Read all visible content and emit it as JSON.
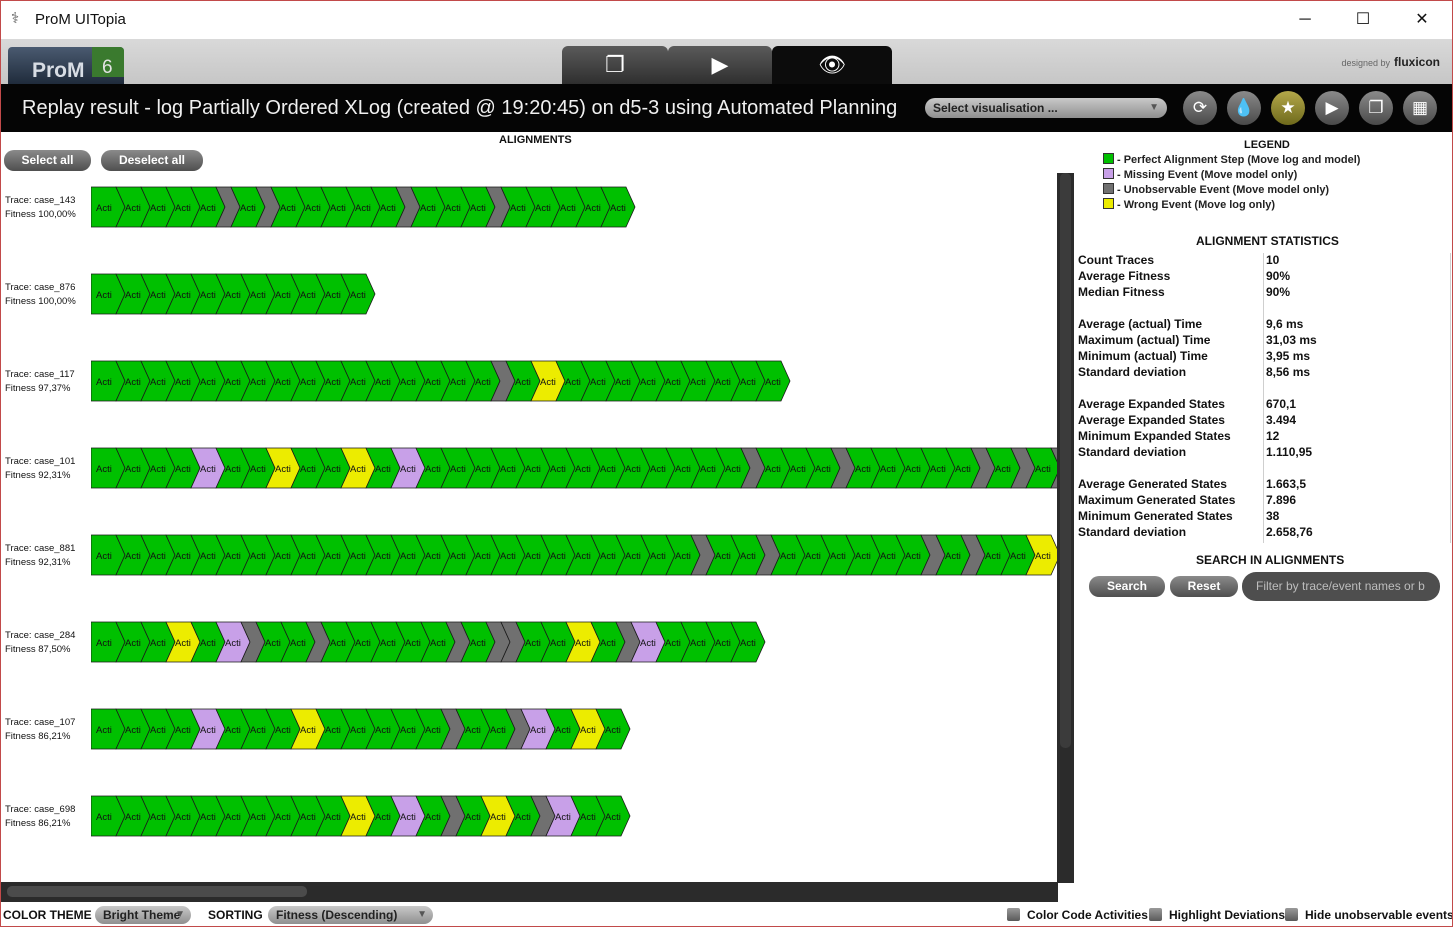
{
  "window": {
    "title": "ProM UITopia",
    "minimize": "─",
    "maximize": "☐",
    "close": "✕"
  },
  "logo": {
    "text": "ProM",
    "version": "6"
  },
  "designed_by": {
    "prefix": "designed by",
    "brand": "fluxicon"
  },
  "heading": "Replay result - log Partially Ordered XLog (created @ 19:20:45) on d5-3 using Automated Planning",
  "visualisation_select": "Select visualisation ...",
  "alignments": {
    "title": "ALIGNMENTS",
    "select_all": "Select all",
    "deselect_all": "Deselect all",
    "event_label": "Acti",
    "colors": {
      "G": "#00c000",
      "P": "#c8a0e8",
      "N": "#707070",
      "Y": "#ecec00"
    },
    "traces": [
      {
        "trace": "Trace: case_143",
        "fitness": "Fitness 100,00%",
        "seq": "GGGGGNGNGGGGGNGGGNGGGGG"
      },
      {
        "trace": "Trace: case_876",
        "fitness": "Fitness 100,00%",
        "seq": "GGGGGGGGGGG"
      },
      {
        "trace": "Trace: case_117",
        "fitness": "Fitness 97,37%",
        "seq": "GGGGGGGGGGGGGGGGNGYGGGGGGGGG"
      },
      {
        "trace": "Trace: case_101",
        "fitness": "Fitness 92,31%",
        "seq": "GGGGPGGYGGYGPGGGGGGGGGGGGGNGGGNGGGGGNGNGN"
      },
      {
        "trace": "Trace: case_881",
        "fitness": "Fitness 92,31%",
        "seq": "GGGGGGGGGGGGGGGGGGGGGGGGNGGNGGGGGGNGNGGY"
      },
      {
        "trace": "Trace: case_284",
        "fitness": "Fitness 87,50%",
        "seq": "GGGYGPNGGNGGGGGNGNNGGYGNPGGGG"
      },
      {
        "trace": "Trace: case_107",
        "fitness": "Fitness 86,21%",
        "seq": "GGGGPGGGYGGGGGNGGNPGYG"
      },
      {
        "trace": "Trace: case_698",
        "fitness": "Fitness 86,21%",
        "seq": "GGGGGGGGGGYGPGNGYGNPGG"
      }
    ]
  },
  "legend": {
    "title": "LEGEND",
    "items": [
      {
        "label": "- Perfect Alignment Step (Move log and model)",
        "color": "#00c000"
      },
      {
        "label": "- Missing Event (Move model only)",
        "color": "#c8a0e8"
      },
      {
        "label": "- Unobservable Event (Move model only)",
        "color": "#707070"
      },
      {
        "label": "- Wrong Event (Move log only)",
        "color": "#ecec00"
      }
    ]
  },
  "statistics": {
    "title": "ALIGNMENT STATISTICS",
    "rows": [
      {
        "label": "Count Traces",
        "value": "10"
      },
      {
        "label": "Average Fitness",
        "value": "90%"
      },
      {
        "label": "Median Fitness",
        "value": "90%"
      },
      {
        "label": "Average (actual) Time",
        "value": "9,6 ms"
      },
      {
        "label": "Maximum (actual) Time",
        "value": "31,03 ms"
      },
      {
        "label": "Minimum (actual) Time",
        "value": "3,95 ms"
      },
      {
        "label": "Standard deviation",
        "value": "8,56 ms"
      },
      {
        "label": "Average Expanded States",
        "value": "670,1"
      },
      {
        "label": "Average Expanded States",
        "value": "3.494"
      },
      {
        "label": "Minimum Expanded States",
        "value": "12"
      },
      {
        "label": "Standard deviation",
        "value": "1.110,95"
      },
      {
        "label": "Average Generated States",
        "value": "1.663,5"
      },
      {
        "label": "Maximum Generated States",
        "value": "7.896"
      },
      {
        "label": "Minimum Generated States",
        "value": "38"
      },
      {
        "label": "Standard deviation",
        "value": "2.658,76"
      }
    ]
  },
  "search": {
    "title": "SEARCH IN ALIGNMENTS",
    "search_button": "Search",
    "reset_button": "Reset",
    "placeholder": "Filter by trace/event names or b"
  },
  "bottom": {
    "color_theme_label": "COLOR THEME",
    "color_theme_value": "Bright Theme",
    "sorting_label": "SORTING",
    "sorting_value": "Fitness (Descending)",
    "color_code_activities": "Color Code Activities",
    "highlight_deviations": "Highlight Deviations",
    "hide_unobservable": "Hide unobservable events"
  }
}
